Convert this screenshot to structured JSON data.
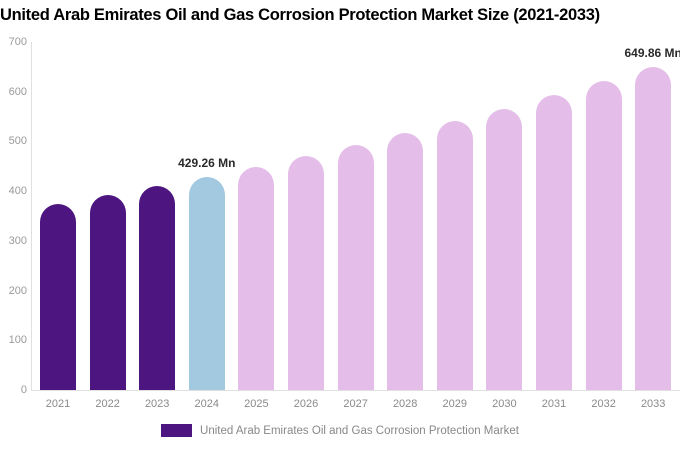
{
  "chart_data": {
    "type": "bar",
    "title": "United Arab Emirates Oil and Gas Corrosion Protection Market Size (2021-2033)",
    "categories": [
      "2021",
      "2022",
      "2023",
      "2024",
      "2025",
      "2026",
      "2027",
      "2028",
      "2029",
      "2030",
      "2031",
      "2032",
      "2033"
    ],
    "values": [
      373.9,
      391.5,
      409.9,
      429.26,
      449.5,
      470.7,
      492.9,
      516.1,
      540.5,
      565.9,
      592.6,
      620.6,
      649.86
    ],
    "bar_colors": [
      "#4d1580",
      "#4d1580",
      "#4d1580",
      "#a3c9e0",
      "#e4bee9",
      "#e4bee9",
      "#e4bee9",
      "#e4bee9",
      "#e4bee9",
      "#e4bee9",
      "#e4bee9",
      "#e4bee9",
      "#e4bee9"
    ],
    "annotations": [
      {
        "category": "2024",
        "text": "429.26 Mn"
      },
      {
        "category": "2033",
        "text": "649.86 Mn"
      }
    ],
    "ylim": [
      0,
      700
    ],
    "ytick_step": 100,
    "ytick_labels": [
      "0",
      "100",
      "200",
      "300",
      "400",
      "500",
      "600",
      "700"
    ],
    "grid": false,
    "legend_position": "bottom",
    "legend": [
      {
        "label": "United Arab Emirates Oil and Gas Corrosion Protection Market",
        "color": "#4d1580"
      }
    ],
    "colors": {
      "historical_bar": "#4d1580",
      "current_year_bar": "#a3c9e0",
      "forecast_bar": "#e4bee9",
      "axis_line": "#e0e0e0",
      "ytick_text": "#9a9a9a",
      "xtick_text": "#8a8a8a",
      "annotation_text": "#2a2a2a",
      "legend_text": "#888888",
      "title_text": "#000000"
    }
  }
}
